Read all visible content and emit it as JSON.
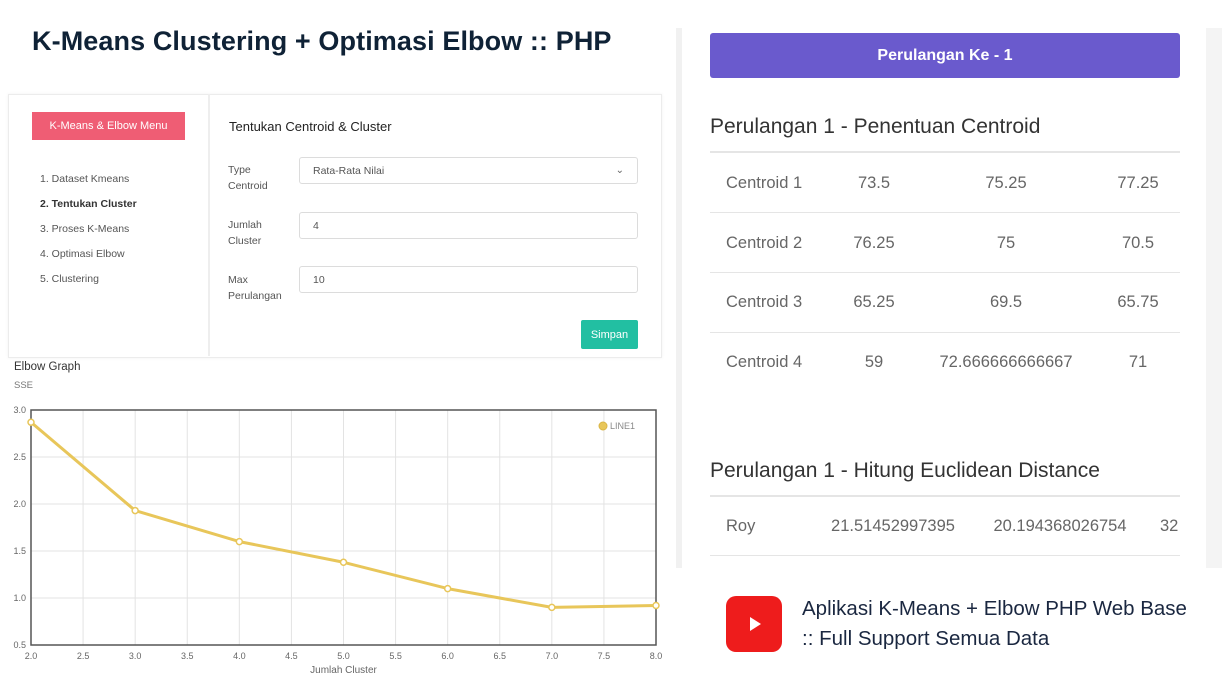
{
  "page": {
    "title": "K-Means Clustering + Optimasi Elbow :: PHP"
  },
  "sidebar": {
    "menu_button": "K-Means & Elbow Menu",
    "items": [
      {
        "label": "1. Dataset Kmeans",
        "active": false
      },
      {
        "label": "2. Tentukan Cluster",
        "active": true
      },
      {
        "label": "3. Proses K-Means",
        "active": false
      },
      {
        "label": "4. Optimasi Elbow",
        "active": false
      },
      {
        "label": "5. Clustering",
        "active": false
      }
    ]
  },
  "form": {
    "title": "Tentukan Centroid & Cluster",
    "type_label": "Type Centroid",
    "type_value": "Rata-Rata Nilai",
    "jumlah_label": "Jumlah Cluster",
    "jumlah_value": "4",
    "max_label": "Max Perulangan",
    "max_value": "10",
    "save_label": "Simpan"
  },
  "chart_data": {
    "type": "line",
    "title": "Elbow Graph",
    "ylabel": "SSE",
    "xlabel": "Jumlah Cluster",
    "x": [
      2,
      3,
      4,
      5,
      6,
      7,
      8
    ],
    "series": [
      {
        "name": "LINE1",
        "values": [
          2.87,
          1.93,
          1.6,
          1.38,
          1.1,
          0.9,
          0.92
        ]
      }
    ],
    "xlim": [
      2.0,
      8.0
    ],
    "ylim": [
      0.5,
      3.0
    ],
    "xticks": [
      "2.0",
      "2.5",
      "3.0",
      "3.5",
      "4.0",
      "4.5",
      "5.0",
      "5.5",
      "6.0",
      "6.5",
      "7.0",
      "7.5",
      "8.0"
    ],
    "yticks": [
      "3.0",
      "2.5",
      "2.0",
      "1.5",
      "1.0",
      "0.5"
    ],
    "grid": true,
    "legend": "top-right",
    "color": "#e8c65a"
  },
  "loop_header": "Perulangan Ke - 1",
  "centroid_section": {
    "title": "Perulangan 1 - Penentuan Centroid",
    "rows": [
      [
        "Centroid 1",
        "73.5",
        "75.25",
        "77.25"
      ],
      [
        "Centroid 2",
        "76.25",
        "75",
        "70.5"
      ],
      [
        "Centroid 3",
        "65.25",
        "69.5",
        "65.75"
      ],
      [
        "Centroid 4",
        "59",
        "72.666666666667",
        "71"
      ]
    ]
  },
  "distance_section": {
    "title": "Perulangan 1 - Hitung Euclidean Distance",
    "rows": [
      [
        "Roy",
        "21.51452997395",
        "20.194368026754",
        "32"
      ]
    ]
  },
  "promo": {
    "icon": "youtube-play-icon",
    "text": "Aplikasi K-Means + Elbow PHP Web Base :: Full Support Semua Data"
  }
}
